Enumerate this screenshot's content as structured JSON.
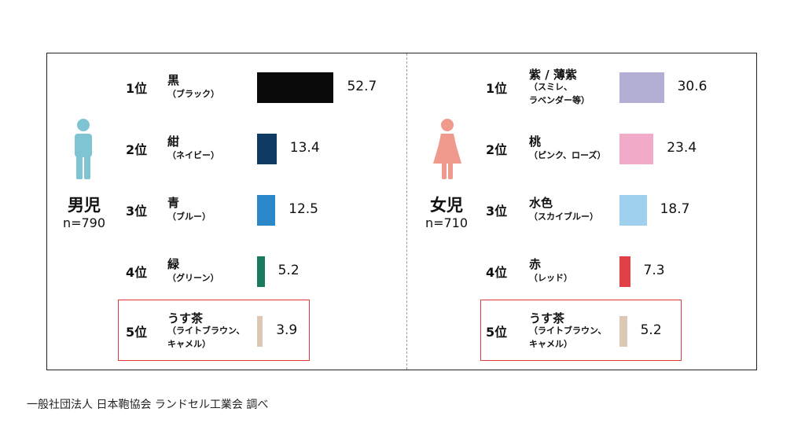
{
  "chart_data": [
    {
      "type": "bar",
      "group_label": "男児",
      "n_label": "n=790",
      "icon": "boy-icon",
      "icon_color": "#7fc4d3",
      "highlight_rank": 5,
      "highlight_color": "#e03a3a",
      "items": [
        {
          "rank": "1位",
          "name": "黒",
          "sub": "（ブラック）",
          "value": 52.7,
          "color": "#0a0a0a"
        },
        {
          "rank": "2位",
          "name": "紺",
          "sub": "（ネイビー）",
          "value": 13.4,
          "color": "#0f3a63"
        },
        {
          "rank": "3位",
          "name": "青",
          "sub": "（ブルー）",
          "value": 12.5,
          "color": "#2a87c8"
        },
        {
          "rank": "4位",
          "name": "緑",
          "sub": "（グリーン）",
          "value": 5.2,
          "color": "#1a7a5e"
        },
        {
          "rank": "5位",
          "name": "うす茶",
          "sub": "（ライトブラウン、\nキャメル）",
          "value": 3.9,
          "color": "#dcc8b4"
        }
      ]
    },
    {
      "type": "bar",
      "group_label": "女児",
      "n_label": "n=710",
      "icon": "girl-icon",
      "icon_color": "#ef9a8c",
      "highlight_rank": 5,
      "highlight_color": "#e03a3a",
      "items": [
        {
          "rank": "1位",
          "name": "紫 / 薄紫",
          "sub": "（スミレ、\nラベンダー等）",
          "value": 30.6,
          "color": "#b3aed3"
        },
        {
          "rank": "2位",
          "name": "桃",
          "sub": "（ピンク、ローズ）",
          "value": 23.4,
          "color": "#f2aac9"
        },
        {
          "rank": "3位",
          "name": "水色",
          "sub": "（スカイブルー）",
          "value": 18.7,
          "color": "#9fd1ee"
        },
        {
          "rank": "4位",
          "name": "赤",
          "sub": "（レッド）",
          "value": 7.3,
          "color": "#e04048"
        },
        {
          "rank": "5位",
          "name": "うす茶",
          "sub": "（ライトブラウン、\nキャメル）",
          "value": 5.2,
          "color": "#dcc8b4"
        }
      ]
    }
  ],
  "source": "一般社団法人 日本鞄協会 ランドセル工業会 調べ"
}
